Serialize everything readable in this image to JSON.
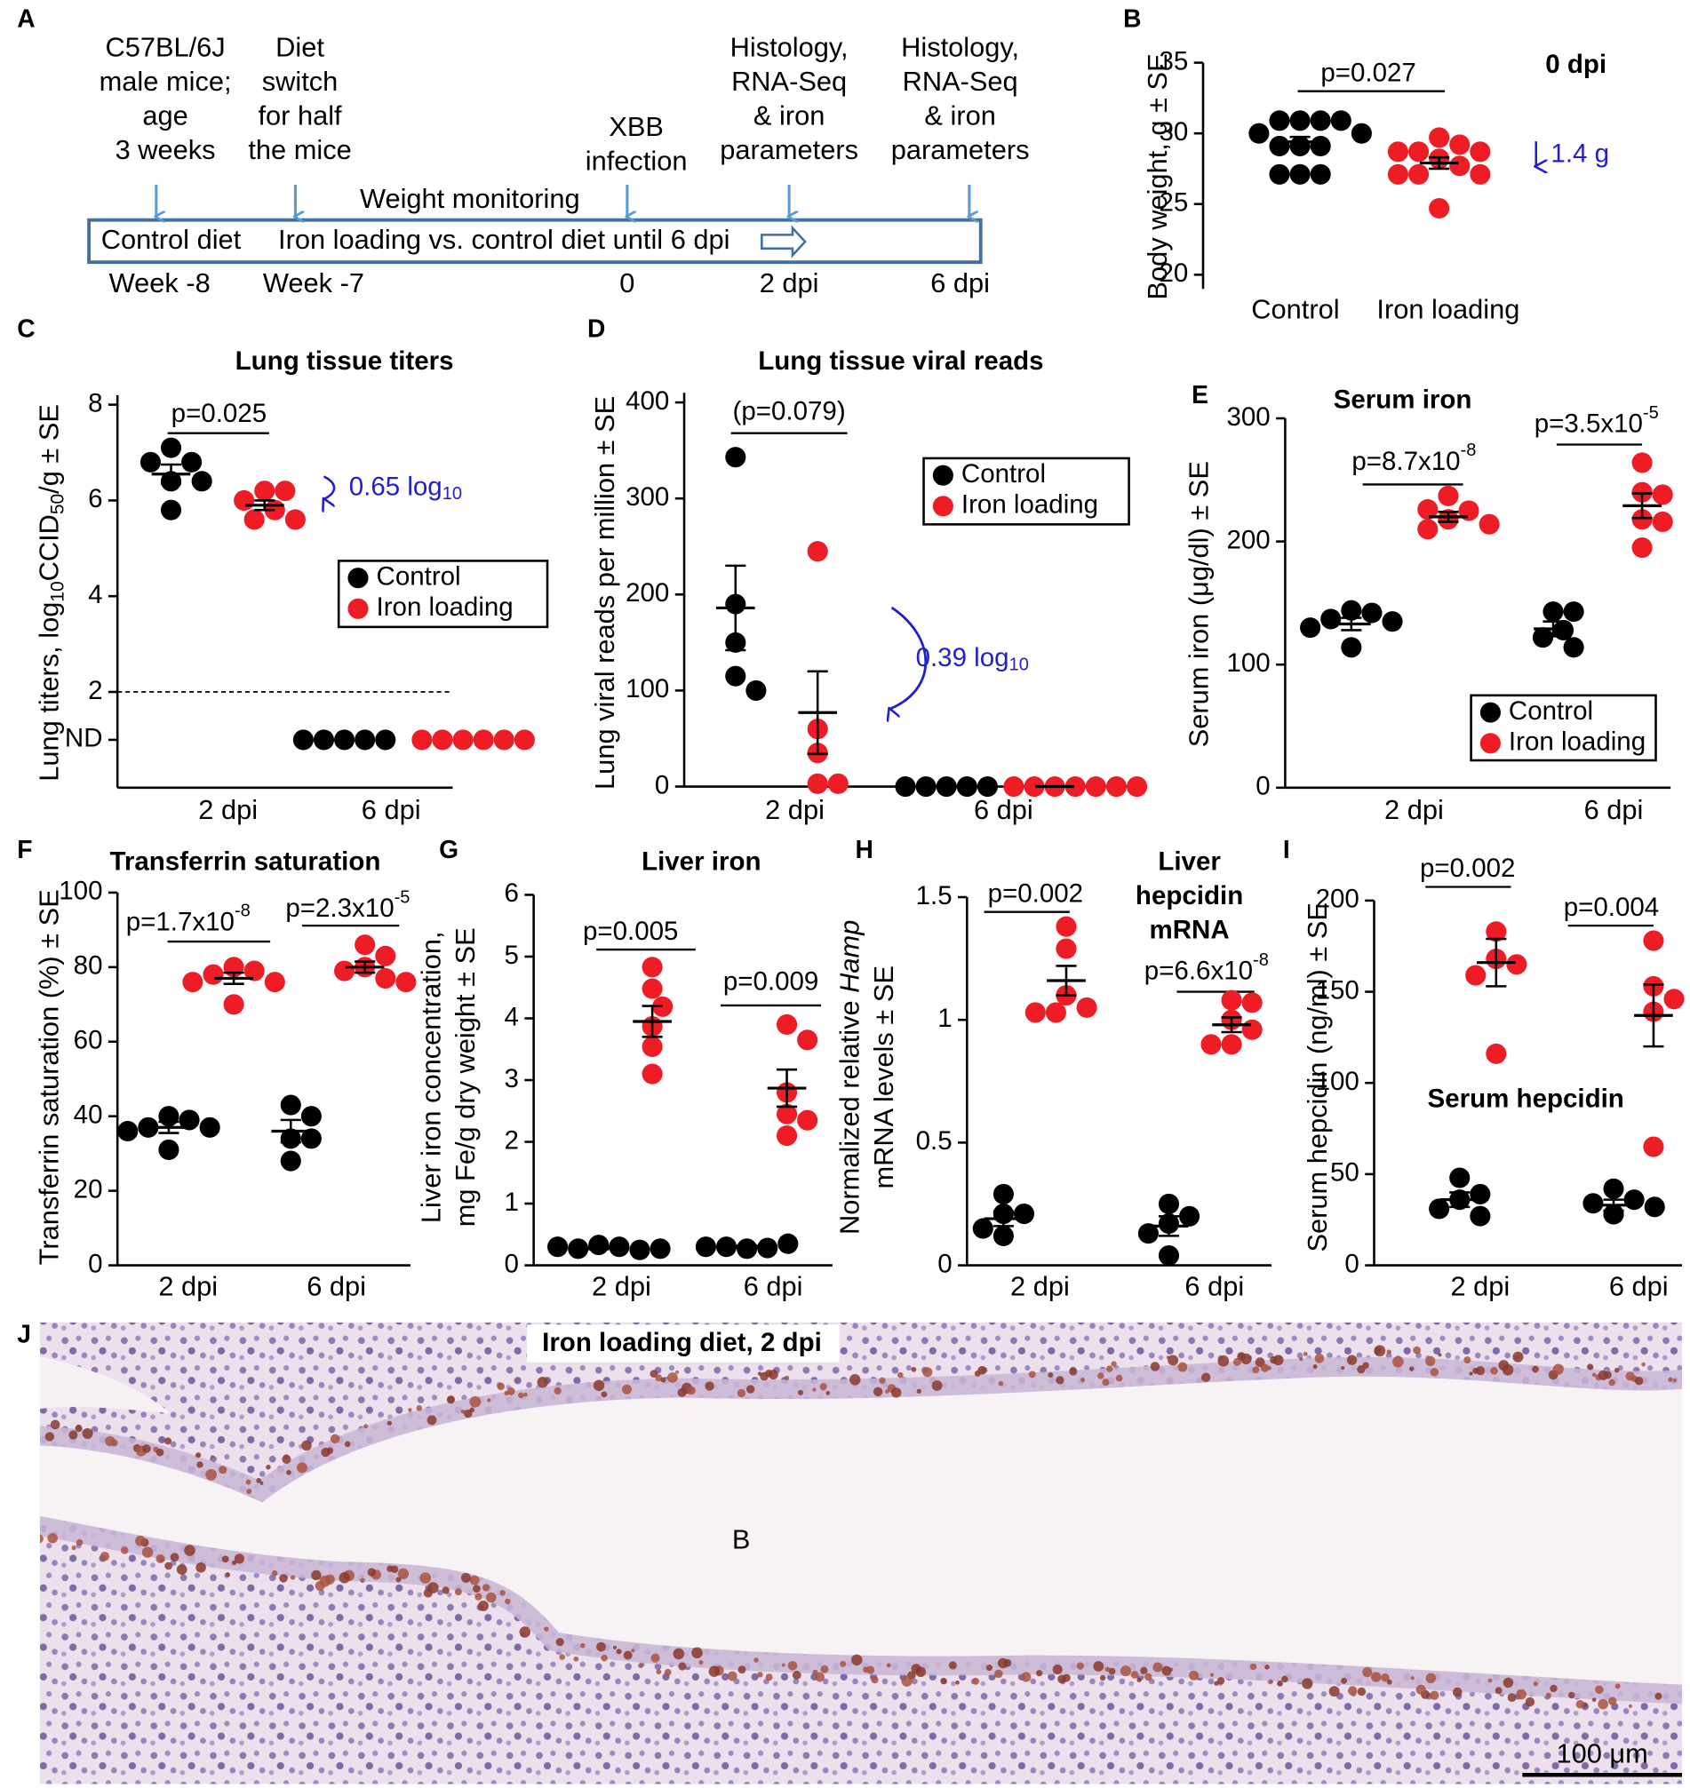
{
  "panel_labels": [
    "A",
    "B",
    "C",
    "D",
    "E",
    "F",
    "G",
    "H",
    "I",
    "J"
  ],
  "timeline": {
    "events": [
      [
        "C57BL/6J",
        "male mice;",
        "age",
        "3 weeks"
      ],
      [
        "Diet",
        "switch",
        "for half",
        "the mice"
      ],
      [
        "XBB",
        "infection"
      ],
      [
        "Histology,",
        "RNA-Seq",
        "& iron",
        "parameters"
      ],
      [
        "Histology,",
        "RNA-Seq",
        "& iron",
        "parameters"
      ]
    ],
    "monitoring": "Weight monitoring",
    "bar": [
      "Control diet",
      "Iron loading vs. control diet until 6 dpi"
    ],
    "times": [
      "Week -8",
      "Week -7",
      "0",
      "2 dpi",
      "6 dpi"
    ]
  },
  "chart_data": [
    {
      "type": "dot",
      "title": "0 dpi",
      "ylabel": [
        [
          "Body weight, g ± SE"
        ]
      ],
      "categories": [
        "Control",
        "Iron loading"
      ],
      "ylim": [
        19,
        35
      ],
      "yticks": [
        20,
        25,
        30,
        35
      ],
      "series": [
        {
          "color": "#000000",
          "values": [
            [
              30.9,
              30.9,
              30.9,
              30.9,
              30.0,
              30.0,
              29.1,
              29.1,
              29.1,
              27.1,
              27.1,
              27.1
            ],
            []
          ],
          "means": [
            29.4,
            null
          ],
          "se": [
            0.35,
            null
          ]
        },
        {
          "color": "#ee1c24",
          "values": [
            [],
            [
              29.7,
              29.2,
              28.7,
              28.7,
              28.7,
              28.2,
              27.7,
              27.1,
              27.1,
              27.1,
              24.7
            ]
          ],
          "means": [
            null,
            27.9
          ],
          "se": [
            null,
            0.4
          ]
        }
      ],
      "annotations": [
        [
          "p=0.027"
        ],
        [
          "1.4 g"
        ]
      ]
    },
    {
      "type": "dot",
      "title": "Lung tissue titers",
      "ylabel": [
        [
          "Lung titers, log",
          {
            "sub": "10"
          },
          "CCID",
          {
            "sub": "50"
          },
          "/g ± SE"
        ]
      ],
      "categories": [
        "2 dpi",
        "6 dpi"
      ],
      "ylim": [
        0,
        8.2
      ],
      "yticks": [
        {
          "value": 1,
          "label": "ND"
        },
        2,
        4,
        6,
        8
      ],
      "hline": 2,
      "series": [
        {
          "name": "Control",
          "color": "#000000",
          "values": [
            [
              7.1,
              6.8,
              6.8,
              6.4,
              6.4,
              5.8
            ],
            [
              1,
              1,
              1,
              1,
              1
            ]
          ],
          "means": [
            6.55,
            null
          ],
          "se": [
            0.2,
            null
          ]
        },
        {
          "name": "Iron loading",
          "color": "#ee1c24",
          "values": [
            [
              6.2,
              6.2,
              6.0,
              5.8,
              5.6,
              5.6
            ],
            [
              1,
              1,
              1,
              1,
              1,
              1
            ]
          ],
          "means": [
            5.9,
            null
          ],
          "se": [
            0.1,
            null
          ]
        }
      ],
      "annotations": [
        [
          "p=0.025"
        ],
        [
          "0.65 log",
          {
            "sub": "10"
          }
        ]
      ]
    },
    {
      "type": "dot",
      "title": "Lung tissue viral reads",
      "ylabel": [
        [
          "Lung viral reads per million ± SE"
        ]
      ],
      "categories": [
        "2 dpi",
        "6 dpi"
      ],
      "ylim": [
        0,
        410
      ],
      "yticks": [
        0,
        100,
        200,
        300,
        400
      ],
      "series": [
        {
          "name": "Control",
          "color": "#000000",
          "values": [
            [
              343,
              190,
              150,
              115,
              100
            ],
            [
              0,
              0,
              0,
              0,
              0
            ]
          ],
          "means": [
            186,
            0
          ],
          "se": [
            44,
            0
          ]
        },
        {
          "name": "Iron loading",
          "color": "#ee1c24",
          "values": [
            [
              245,
              60,
              35,
              3,
              3
            ],
            [
              0,
              0,
              0,
              0,
              0,
              0,
              0
            ]
          ],
          "means": [
            77,
            0
          ],
          "se": [
            43,
            0
          ]
        }
      ],
      "annotations": [
        [
          "(p=0.079)"
        ],
        [
          "0.39 log",
          {
            "sub": "10"
          }
        ]
      ]
    },
    {
      "type": "dot",
      "title": "Serum iron",
      "ylabel": [
        [
          "Serum iron (μg/dl) ± SE"
        ]
      ],
      "categories": [
        "2 dpi",
        "6 dpi"
      ],
      "ylim": [
        0,
        300
      ],
      "yticks": [
        0,
        100,
        200,
        300
      ],
      "series": [
        {
          "name": "Control",
          "color": "#000000",
          "values": [
            [
              144,
              142,
              137,
              135,
              130,
              114
            ],
            [
              143,
              143,
              128,
              122,
              114
            ]
          ],
          "means": [
            133,
            129
          ],
          "se": [
            5,
            6
          ]
        },
        {
          "name": "Iron loading",
          "color": "#ee1c24",
          "values": [
            [
              237,
              225,
              226,
              218,
              214,
              210
            ],
            [
              264,
              240,
              238,
              218,
              216,
              195
            ]
          ],
          "means": [
            220,
            229
          ],
          "se": [
            4,
            10
          ]
        }
      ],
      "annotations": [
        [
          "p=8.7x10",
          {
            "sup": "-8"
          }
        ],
        [
          "p=3.5x10",
          {
            "sup": "-5"
          }
        ]
      ]
    },
    {
      "type": "dot",
      "title": "Transferrin saturation",
      "ylabel": [
        [
          "Transferrin saturation (%) ± SE"
        ]
      ],
      "categories": [
        "2 dpi",
        "6 dpi"
      ],
      "ylim": [
        0,
        100
      ],
      "yticks": [
        0,
        20,
        40,
        60,
        80,
        100
      ],
      "series": [
        {
          "color": "#000000",
          "values": [
            [
              40,
              39,
              37,
              37,
              36,
              31
            ],
            [
              43,
              40,
              34,
              34,
              28
            ]
          ],
          "means": [
            37,
            36
          ],
          "se": [
            1.5,
            3
          ]
        },
        {
          "color": "#ee1c24",
          "values": [
            [
              80,
              79,
              78,
              76,
              76,
              70
            ],
            [
              86,
              83,
              80,
              79,
              77,
              76
            ]
          ],
          "means": [
            77,
            80
          ],
          "se": [
            1.5,
            1.5
          ]
        }
      ],
      "annotations": [
        [
          "p=1.7x10",
          {
            "sup": "-8"
          }
        ],
        [
          "p=2.3x10",
          {
            "sup": "-5"
          }
        ]
      ]
    },
    {
      "type": "dot",
      "title": "Liver iron",
      "ylabel": [
        [
          "Liver iron concentration,"
        ],
        [
          "mg Fe/g dry weight ± SE"
        ]
      ],
      "categories": [
        "2 dpi",
        "6 dpi"
      ],
      "ylim": [
        0,
        6
      ],
      "yticks": [
        0,
        1,
        2,
        3,
        4,
        5,
        6
      ],
      "series": [
        {
          "color": "#000000",
          "values": [
            [
              0.33,
              0.3,
              0.27,
              0.25,
              0.3,
              0.27
            ],
            [
              0.27,
              0.28,
              0.3,
              0.35,
              0.3
            ]
          ],
          "means": [
            0.28,
            0.3
          ],
          "se": [
            0.02,
            0.02
          ]
        },
        {
          "color": "#ee1c24",
          "values": [
            [
              4.83,
              4.48,
              4.19,
              3.87,
              3.54,
              3.1
            ],
            [
              3.9,
              3.65,
              2.8,
              2.45,
              2.1,
              2.35
            ]
          ],
          "means": [
            3.95,
            2.87
          ],
          "se": [
            0.25,
            0.3
          ]
        }
      ],
      "annotations": [
        [
          "p=0.005"
        ],
        [
          "p=0.009"
        ]
      ]
    },
    {
      "type": "dot",
      "title": [
        "Liver",
        "hepcidin",
        "mRNA"
      ],
      "ylabel": [
        [
          "Normalized relative ",
          {
            "i": "Hamp"
          }
        ],
        [
          "mRNA levels ± SE"
        ]
      ],
      "categories": [
        "2 dpi",
        "6 dpi"
      ],
      "ylim": [
        0,
        1.5
      ],
      "yticks": [
        0,
        0.5,
        1,
        1.5
      ],
      "series": [
        {
          "color": "#000000",
          "values": [
            [
              0.29,
              0.21,
              0.21,
              0.15,
              0.12
            ],
            [
              0.25,
              0.2,
              0.17,
              0.13,
              0.04
            ]
          ],
          "means": [
            0.19,
            0.16
          ],
          "se": [
            0.03,
            0.04
          ]
        },
        {
          "color": "#ee1c24",
          "values": [
            [
              1.38,
              1.29,
              1.1,
              1.05,
              1.03,
              1.03
            ],
            [
              1.08,
              1.07,
              1.0,
              0.96,
              0.9,
              0.9
            ]
          ],
          "means": [
            1.16,
            0.98
          ],
          "se": [
            0.06,
            0.03
          ]
        }
      ],
      "annotations": [
        [
          "p=0.002"
        ],
        [
          "p=6.6x10",
          {
            "sup": "-8"
          }
        ]
      ]
    },
    {
      "type": "dot",
      "title": "Serum hepcidin",
      "ylabel": [
        [
          "Serum hepcidin (ng/ml) ± SE"
        ]
      ],
      "categories": [
        "2 dpi",
        "6 dpi"
      ],
      "ylim": [
        0,
        200
      ],
      "yticks": [
        0,
        50,
        100,
        150,
        200
      ],
      "series": [
        {
          "color": "#000000",
          "values": [
            [
              48,
              39,
              36,
              31,
              27
            ],
            [
              42,
              36,
              34,
              32,
              28
            ]
          ],
          "means": [
            36,
            33
          ],
          "se": [
            4,
            3
          ]
        },
        {
          "color": "#ee1c24",
          "values": [
            [
              183,
              168,
              165,
              159,
              116
            ],
            [
              178,
              153,
              146,
              139,
              65
            ]
          ],
          "means": [
            166,
            137
          ],
          "se": [
            13,
            17
          ]
        }
      ],
      "annotations": [
        [
          "p=0.002"
        ],
        [
          "p=0.004"
        ]
      ]
    }
  ],
  "histology": {
    "caption": "Iron loading diet, 2 dpi",
    "region": "B",
    "scale_bar": "100 μm"
  }
}
